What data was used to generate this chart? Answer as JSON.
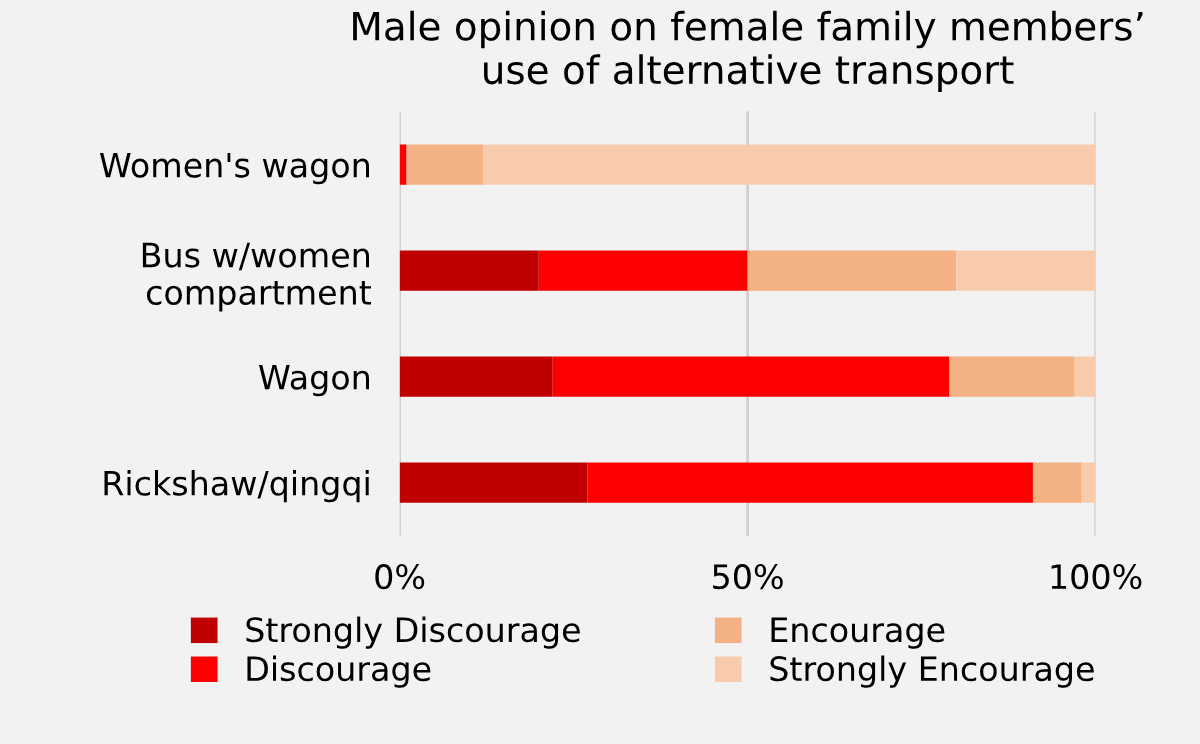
{
  "chart_data": {
    "type": "bar",
    "orientation": "horizontal",
    "stacked": true,
    "title": "Male opinion on female family members’\nuse of alternative transport",
    "categories": [
      "Women's wagon",
      "Bus w/women\ncompartment",
      "Wagon",
      "Rickshaw/qingqi"
    ],
    "series": [
      {
        "name": "Strongly Discourage",
        "color": "#c00000",
        "values": [
          0,
          20,
          22,
          27
        ]
      },
      {
        "name": "Discourage",
        "color": "#ff0000",
        "values": [
          1,
          30,
          57,
          64
        ]
      },
      {
        "name": "Encourage",
        "color": "#f4b183",
        "values": [
          11,
          30,
          18,
          7
        ]
      },
      {
        "name": "Strongly Encourage",
        "color": "#f8cbad",
        "values": [
          88,
          20,
          3,
          2
        ]
      }
    ],
    "xlim": [
      0,
      100
    ],
    "xticks": [
      {
        "value": 0,
        "label": "0%"
      },
      {
        "value": 50,
        "label": "50%"
      },
      {
        "value": 100,
        "label": "100%"
      }
    ],
    "grid": "x",
    "legend": "bottom"
  }
}
